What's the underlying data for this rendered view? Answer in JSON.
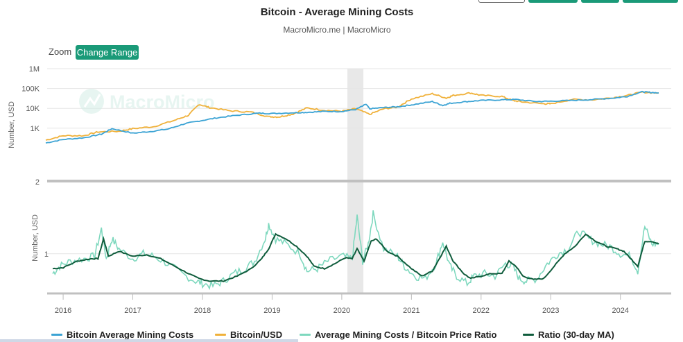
{
  "header": {
    "title": "Bitcoin - Average Mining Costs",
    "subtitle": "MacroMicro.me | MacroMicro"
  },
  "toolbar": {
    "zoom_label": "Zoom",
    "range_button": "Change Range"
  },
  "watermark": "MacroMicro",
  "colors": {
    "mining_cost": "#3ba3d4",
    "btc_usd": "#f0b13a",
    "ratio": "#7ed8be",
    "ratio_ma": "#0f5c3c",
    "accent": "#1a9a78",
    "highlight_band": "#e8e8e8"
  },
  "chart_data": [
    {
      "type": "line",
      "ylabel": "Number, USD",
      "yscale": "log",
      "ylim": [
        2,
        1000000
      ],
      "yticks": [
        "1M",
        "100K",
        "10K",
        "1K",
        "2"
      ],
      "ytick_values": [
        1000000,
        100000,
        10000,
        1000,
        2
      ],
      "series": [
        {
          "name": "Bitcoin Average Mining Costs",
          "x": [
            2015.75,
            2016.0,
            2016.3,
            2016.55,
            2016.7,
            2017.0,
            2017.25,
            2017.5,
            2017.75,
            2017.95,
            2018.2,
            2018.5,
            2018.8,
            2019.0,
            2019.3,
            2019.5,
            2019.75,
            2020.0,
            2020.2,
            2020.35,
            2020.4,
            2020.6,
            2020.8,
            2021.0,
            2021.3,
            2021.45,
            2021.55,
            2021.8,
            2022.0,
            2022.3,
            2022.5,
            2022.8,
            2023.0,
            2023.3,
            2023.6,
            2023.9,
            2024.1,
            2024.3,
            2024.4,
            2024.55
          ],
          "values": [
            180,
            270,
            330,
            500,
            950,
            560,
            680,
            900,
            1700,
            2300,
            3300,
            4500,
            5700,
            5500,
            6000,
            6300,
            7000,
            7000,
            8800,
            16000,
            9500,
            11000,
            12000,
            15000,
            22000,
            14000,
            18000,
            22000,
            25000,
            27000,
            28000,
            22000,
            23000,
            25000,
            28000,
            33000,
            40000,
            68000,
            65000,
            60000
          ]
        },
        {
          "name": "Bitcoin/USD",
          "x": [
            2015.75,
            2016.0,
            2016.3,
            2016.5,
            2016.8,
            2017.0,
            2017.3,
            2017.6,
            2017.8,
            2017.95,
            2018.1,
            2018.4,
            2018.7,
            2018.95,
            2019.1,
            2019.3,
            2019.5,
            2019.75,
            2020.0,
            2020.2,
            2020.4,
            2020.6,
            2020.8,
            2021.0,
            2021.3,
            2021.5,
            2021.6,
            2021.85,
            2022.0,
            2022.3,
            2022.45,
            2022.6,
            2022.9,
            2023.0,
            2023.3,
            2023.6,
            2023.9,
            2024.1,
            2024.3,
            2024.55
          ],
          "values": [
            250,
            420,
            420,
            650,
            700,
            950,
            1200,
            2500,
            4500,
            16000,
            11000,
            7500,
            6500,
            3800,
            3700,
            5200,
            10500,
            8000,
            7200,
            9600,
            5000,
            9500,
            11500,
            30000,
            55000,
            33000,
            45000,
            60000,
            45000,
            40000,
            25000,
            21000,
            17000,
            17000,
            28000,
            27000,
            35000,
            45000,
            65000,
            60000
          ]
        }
      ]
    },
    {
      "type": "line",
      "ylabel": "Number, USD",
      "yticks": [
        "1"
      ],
      "ytick_values": [
        1
      ],
      "ylim": [
        0.2,
        2.2
      ],
      "x_axis_labels": [
        "2016",
        "2017",
        "2018",
        "2019",
        "2020",
        "2021",
        "2022",
        "2023",
        "2024"
      ],
      "x_axis_values": [
        2016,
        2017,
        2018,
        2019,
        2020,
        2021,
        2022,
        2023,
        2024
      ],
      "x_range": [
        2015.85,
        2024.65
      ],
      "shaded_period": [
        2020.08,
        2020.31
      ],
      "series": [
        {
          "name": "Average Mining Costs / Bitcoin Price Ratio",
          "x": [
            2015.85,
            2015.95,
            2016.1,
            2016.3,
            2016.45,
            2016.55,
            2016.62,
            2016.7,
            2016.8,
            2017.0,
            2017.15,
            2017.3,
            2017.5,
            2017.7,
            2017.9,
            2018.0,
            2018.15,
            2018.3,
            2018.45,
            2018.6,
            2018.75,
            2018.9,
            2018.95,
            2019.05,
            2019.2,
            2019.4,
            2019.5,
            2019.65,
            2019.8,
            2020.0,
            2020.15,
            2020.22,
            2020.3,
            2020.38,
            2020.45,
            2020.6,
            2020.8,
            2020.9,
            2021.05,
            2021.2,
            2021.35,
            2021.45,
            2021.55,
            2021.65,
            2021.8,
            2021.9,
            2022.05,
            2022.2,
            2022.35,
            2022.45,
            2022.55,
            2022.65,
            2022.8,
            2022.95,
            2023.1,
            2023.25,
            2023.4,
            2023.55,
            2023.7,
            2023.85,
            2024.0,
            2024.15,
            2024.25,
            2024.35,
            2024.45,
            2024.55
          ],
          "values": [
            0.6,
            0.75,
            0.85,
            0.9,
            0.95,
            1.5,
            0.9,
            1.3,
            1.1,
            0.9,
            1.0,
            0.95,
            0.8,
            0.6,
            0.45,
            0.4,
            0.35,
            0.45,
            0.6,
            0.7,
            0.85,
            1.3,
            1.6,
            1.3,
            1.2,
            1.0,
            0.65,
            0.7,
            0.85,
            0.95,
            0.9,
            1.75,
            0.85,
            1.2,
            1.8,
            1.1,
            0.95,
            0.75,
            0.55,
            0.5,
            0.8,
            1.25,
            0.75,
            0.55,
            0.4,
            0.55,
            0.6,
            0.55,
            0.8,
            0.75,
            0.5,
            0.45,
            0.5,
            0.8,
            1.0,
            1.1,
            1.45,
            1.3,
            1.2,
            1.15,
            1.0,
            0.95,
            0.65,
            1.55,
            1.2,
            1.2
          ]
        },
        {
          "name": "Ratio (30-day MA)",
          "x": [
            2015.85,
            2016.0,
            2016.2,
            2016.4,
            2016.5,
            2016.58,
            2016.65,
            2016.8,
            2017.0,
            2017.2,
            2017.4,
            2017.6,
            2017.8,
            2017.95,
            2018.1,
            2018.3,
            2018.5,
            2018.7,
            2018.85,
            2018.95,
            2019.05,
            2019.2,
            2019.35,
            2019.5,
            2019.6,
            2019.75,
            2019.9,
            2020.05,
            2020.15,
            2020.22,
            2020.32,
            2020.42,
            2020.5,
            2020.65,
            2020.8,
            2021.0,
            2021.15,
            2021.3,
            2021.4,
            2021.5,
            2021.6,
            2021.75,
            2021.85,
            2022.0,
            2022.15,
            2022.3,
            2022.4,
            2022.5,
            2022.6,
            2022.75,
            2022.9,
            2023.05,
            2023.2,
            2023.35,
            2023.5,
            2023.65,
            2023.8,
            2023.95,
            2024.05,
            2024.15,
            2024.25,
            2024.35,
            2024.45,
            2024.55
          ],
          "values": [
            0.7,
            0.72,
            0.85,
            0.9,
            0.9,
            1.3,
            0.95,
            1.05,
            0.95,
            0.98,
            0.9,
            0.75,
            0.6,
            0.5,
            0.45,
            0.45,
            0.55,
            0.7,
            0.9,
            1.1,
            1.4,
            1.3,
            1.15,
            0.95,
            0.75,
            0.7,
            0.8,
            0.92,
            0.9,
            1.1,
            0.85,
            1.25,
            1.3,
            1.05,
            0.95,
            0.7,
            0.55,
            0.65,
            0.9,
            1.15,
            0.85,
            0.6,
            0.5,
            0.55,
            0.6,
            0.6,
            0.85,
            0.75,
            0.55,
            0.48,
            0.5,
            0.75,
            1.0,
            1.15,
            1.4,
            1.25,
            1.15,
            1.1,
            1.05,
            0.9,
            0.75,
            1.25,
            1.25,
            1.2
          ]
        }
      ]
    }
  ]
}
